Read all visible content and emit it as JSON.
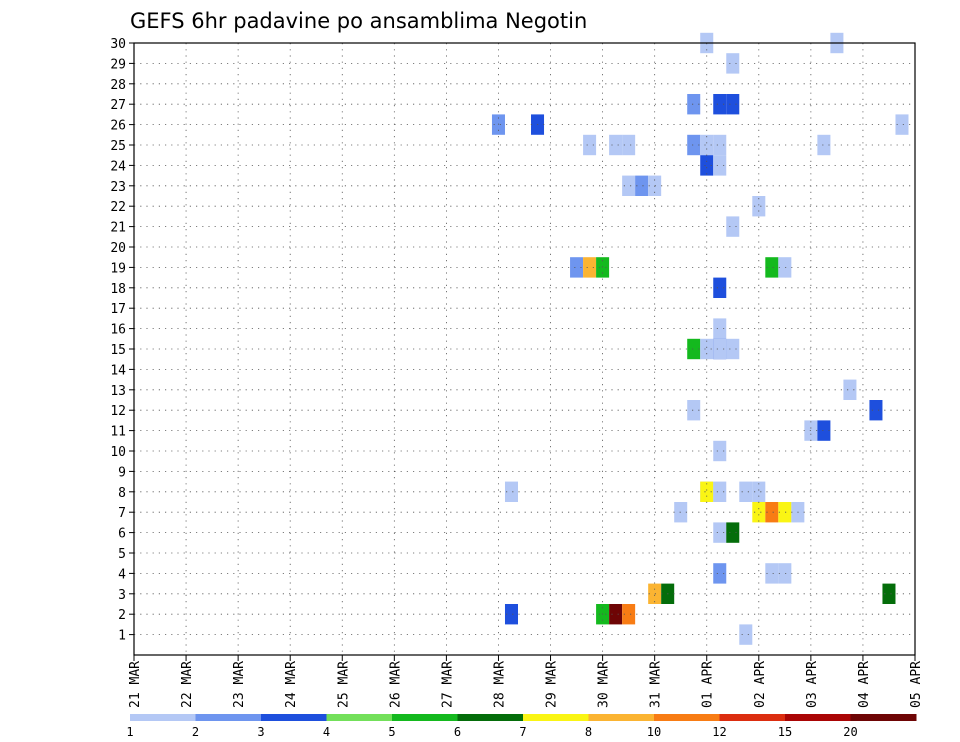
{
  "chart_data": {
    "type": "heatmap",
    "title": "GEFS 6hr padavine po ansamblima Negotin",
    "x_tick_labels": [
      "21 MAR",
      "22 MAR",
      "23 MAR",
      "24 MAR",
      "25 MAR",
      "26 MAR",
      "27 MAR",
      "28 MAR",
      "29 MAR",
      "30 MAR",
      "31 MAR",
      "01 APR",
      "02 APR",
      "03 APR",
      "04 APR",
      "05 APR"
    ],
    "y_tick_labels": [
      "1",
      "2",
      "3",
      "4",
      "5",
      "6",
      "7",
      "8",
      "9",
      "10",
      "11",
      "12",
      "13",
      "14",
      "15",
      "16",
      "17",
      "18",
      "19",
      "20",
      "21",
      "22",
      "23",
      "24",
      "25",
      "26",
      "27",
      "28",
      "29",
      "30"
    ],
    "ylim": [
      0,
      30
    ],
    "steps_per_day": 4,
    "grid": "dotted",
    "colorbar": {
      "labels": [
        "1",
        "2",
        "3",
        "4",
        "5",
        "6",
        "7",
        "8",
        "10",
        "12",
        "15",
        "20"
      ],
      "colors": [
        "#b4c8f5",
        "#6e95ef",
        "#1e4fdd",
        "#73e05a",
        "#14b91e",
        "#046d0a",
        "#faf514",
        "#fbb432",
        "#f87c14",
        "#dc2d0f",
        "#aa0505",
        "#6e0505"
      ]
    },
    "cells": [
      {
        "x": 11.0,
        "y": 30,
        "c": 0
      },
      {
        "x": 13.5,
        "y": 30,
        "c": 0
      },
      {
        "x": 11.5,
        "y": 29,
        "c": 0
      },
      {
        "x": 10.75,
        "y": 27,
        "c": 1
      },
      {
        "x": 11.25,
        "y": 27,
        "c": 2
      },
      {
        "x": 11.5,
        "y": 27,
        "c": 2
      },
      {
        "x": 7.0,
        "y": 26,
        "c": 1
      },
      {
        "x": 7.75,
        "y": 26,
        "c": 2
      },
      {
        "x": 14.75,
        "y": 26,
        "c": 0
      },
      {
        "x": 8.75,
        "y": 25,
        "c": 0
      },
      {
        "x": 9.25,
        "y": 25,
        "c": 0
      },
      {
        "x": 9.5,
        "y": 25,
        "c": 0
      },
      {
        "x": 10.75,
        "y": 25,
        "c": 1
      },
      {
        "x": 11.0,
        "y": 25,
        "c": 0
      },
      {
        "x": 11.25,
        "y": 25,
        "c": 0
      },
      {
        "x": 13.25,
        "y": 25,
        "c": 0
      },
      {
        "x": 11.0,
        "y": 24,
        "c": 2
      },
      {
        "x": 11.25,
        "y": 24,
        "c": 0
      },
      {
        "x": 9.5,
        "y": 23,
        "c": 0
      },
      {
        "x": 9.75,
        "y": 23,
        "c": 1
      },
      {
        "x": 10.0,
        "y": 23,
        "c": 0
      },
      {
        "x": 12.0,
        "y": 22,
        "c": 0
      },
      {
        "x": 11.5,
        "y": 21,
        "c": 0
      },
      {
        "x": 8.5,
        "y": 19,
        "c": 1
      },
      {
        "x": 8.75,
        "y": 19,
        "c": 7
      },
      {
        "x": 9.0,
        "y": 19,
        "c": 4
      },
      {
        "x": 12.25,
        "y": 19,
        "c": 4
      },
      {
        "x": 12.5,
        "y": 19,
        "c": 0
      },
      {
        "x": 11.25,
        "y": 18,
        "c": 2
      },
      {
        "x": 11.25,
        "y": 16,
        "c": 0
      },
      {
        "x": 10.75,
        "y": 15,
        "c": 4
      },
      {
        "x": 11.0,
        "y": 15,
        "c": 0
      },
      {
        "x": 11.25,
        "y": 15,
        "c": 2
      },
      {
        "x": 11.25,
        "y": 15,
        "c": 0
      },
      {
        "x": 11.5,
        "y": 15,
        "c": 0
      },
      {
        "x": 13.75,
        "y": 13,
        "c": 0
      },
      {
        "x": 10.75,
        "y": 12,
        "c": 0
      },
      {
        "x": 14.25,
        "y": 12,
        "c": 2
      },
      {
        "x": 13.0,
        "y": 11,
        "c": 0
      },
      {
        "x": 13.25,
        "y": 11,
        "c": 2
      },
      {
        "x": 11.25,
        "y": 10,
        "c": 0
      },
      {
        "x": 7.25,
        "y": 8,
        "c": 0
      },
      {
        "x": 11.0,
        "y": 8,
        "c": 0
      },
      {
        "x": 11.0,
        "y": 8,
        "c": 6
      },
      {
        "x": 11.25,
        "y": 8,
        "c": 0
      },
      {
        "x": 11.75,
        "y": 8,
        "c": 0
      },
      {
        "x": 12.0,
        "y": 8,
        "c": 0
      },
      {
        "x": 10.5,
        "y": 7,
        "c": 0
      },
      {
        "x": 12.0,
        "y": 7,
        "c": 6
      },
      {
        "x": 12.25,
        "y": 7,
        "c": 8
      },
      {
        "x": 12.5,
        "y": 7,
        "c": 6
      },
      {
        "x": 12.75,
        "y": 7,
        "c": 0
      },
      {
        "x": 11.25,
        "y": 6,
        "c": 0
      },
      {
        "x": 11.5,
        "y": 6,
        "c": 5
      },
      {
        "x": 11.25,
        "y": 4,
        "c": 1
      },
      {
        "x": 12.25,
        "y": 4,
        "c": 0
      },
      {
        "x": 12.5,
        "y": 4,
        "c": 0
      },
      {
        "x": 10.0,
        "y": 3,
        "c": 7
      },
      {
        "x": 10.25,
        "y": 3,
        "c": 5
      },
      {
        "x": 14.5,
        "y": 3,
        "c": 5
      },
      {
        "x": 7.25,
        "y": 2,
        "c": 2
      },
      {
        "x": 9.0,
        "y": 2,
        "c": 4
      },
      {
        "x": 9.25,
        "y": 2,
        "c": 11
      },
      {
        "x": 9.5,
        "y": 2,
        "c": 8
      },
      {
        "x": 11.75,
        "y": 1,
        "c": 0
      }
    ]
  }
}
